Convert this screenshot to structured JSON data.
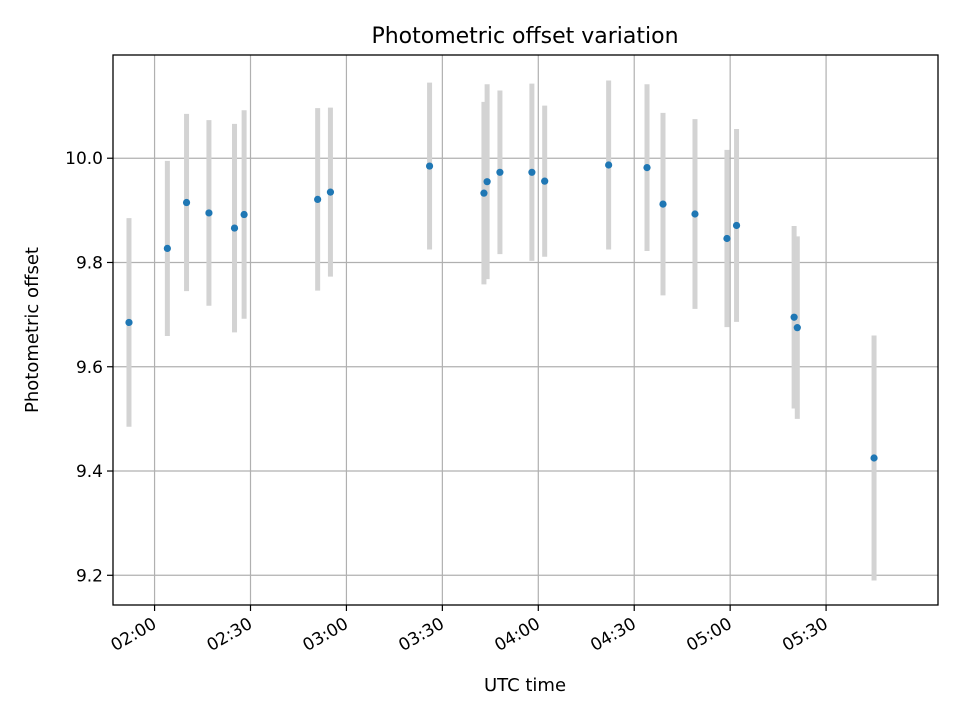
{
  "chart_data": {
    "type": "scatter",
    "title": "Photometric offset variation",
    "xlabel": "UTC time",
    "ylabel": "Photometric offset",
    "x_ticks": [
      "02:00",
      "02:30",
      "03:00",
      "03:30",
      "04:00",
      "04:30",
      "05:00",
      "05:30"
    ],
    "x_tick_rotation_deg": 30,
    "y_ticks": [
      "9.2",
      "9.4",
      "9.6",
      "9.8",
      "10.0"
    ],
    "xlim": [
      "01:47",
      "06:05"
    ],
    "ylim": [
      9.143,
      10.198
    ],
    "grid": true,
    "colors": {
      "points": "#1f77b4",
      "errorbars": "#d3d3d3",
      "grid": "#b0b0b0"
    },
    "series": [
      {
        "points": [
          {
            "x": "01:52",
            "y": 9.685,
            "err": 0.2
          },
          {
            "x": "02:04",
            "y": 9.827,
            "err": 0.168
          },
          {
            "x": "02:10",
            "y": 9.915,
            "err": 0.17
          },
          {
            "x": "02:17",
            "y": 9.895,
            "err": 0.178
          },
          {
            "x": "02:25",
            "y": 9.866,
            "err": 0.2
          },
          {
            "x": "02:28",
            "y": 9.892,
            "err": 0.2
          },
          {
            "x": "02:51",
            "y": 9.921,
            "err": 0.175
          },
          {
            "x": "02:55",
            "y": 9.935,
            "err": 0.162
          },
          {
            "x": "03:26",
            "y": 9.985,
            "err": 0.16
          },
          {
            "x": "03:43",
            "y": 9.933,
            "err": 0.175
          },
          {
            "x": "03:44",
            "y": 9.955,
            "err": 0.187
          },
          {
            "x": "03:48",
            "y": 9.973,
            "err": 0.157
          },
          {
            "x": "03:58",
            "y": 9.973,
            "err": 0.17
          },
          {
            "x": "04:02",
            "y": 9.956,
            "err": 0.145
          },
          {
            "x": "04:22",
            "y": 9.987,
            "err": 0.162
          },
          {
            "x": "04:34",
            "y": 9.982,
            "err": 0.16
          },
          {
            "x": "04:39",
            "y": 9.912,
            "err": 0.175
          },
          {
            "x": "04:49",
            "y": 9.893,
            "err": 0.182
          },
          {
            "x": "04:59",
            "y": 9.846,
            "err": 0.17
          },
          {
            "x": "05:02",
            "y": 9.871,
            "err": 0.185
          },
          {
            "x": "05:20",
            "y": 9.695,
            "err": 0.175
          },
          {
            "x": "05:21",
            "y": 9.675,
            "err": 0.175
          },
          {
            "x": "05:45",
            "y": 9.425,
            "err": 0.235
          }
        ]
      }
    ]
  }
}
